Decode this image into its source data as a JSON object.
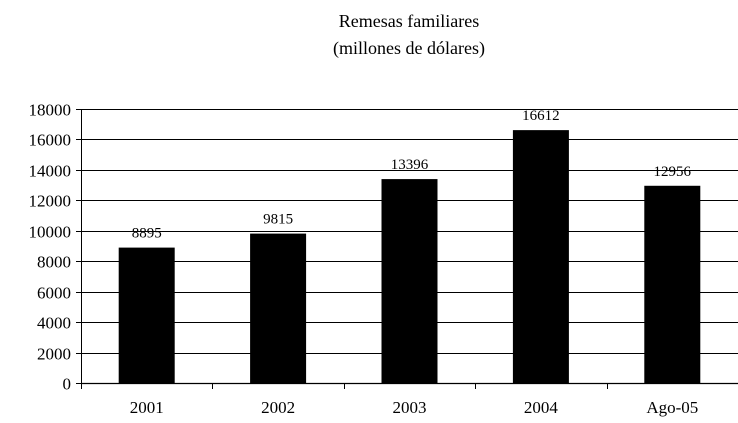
{
  "chart_data": {
    "type": "bar",
    "title": "Remesas familiares",
    "subtitle": "(millones de dólares)",
    "categories": [
      "2001",
      "2002",
      "2003",
      "2004",
      "Ago-05"
    ],
    "values": [
      8895,
      9815,
      13396,
      16612,
      12956
    ],
    "data_labels": [
      "8895",
      "9815",
      "13396",
      "16612",
      "12956"
    ],
    "ylim": [
      0,
      18000
    ],
    "yticks": [
      0,
      2000,
      4000,
      6000,
      8000,
      10000,
      12000,
      14000,
      16000,
      18000
    ],
    "grid": true,
    "legend": "none",
    "bar_color": "#000000",
    "grid_color": "#000000"
  }
}
